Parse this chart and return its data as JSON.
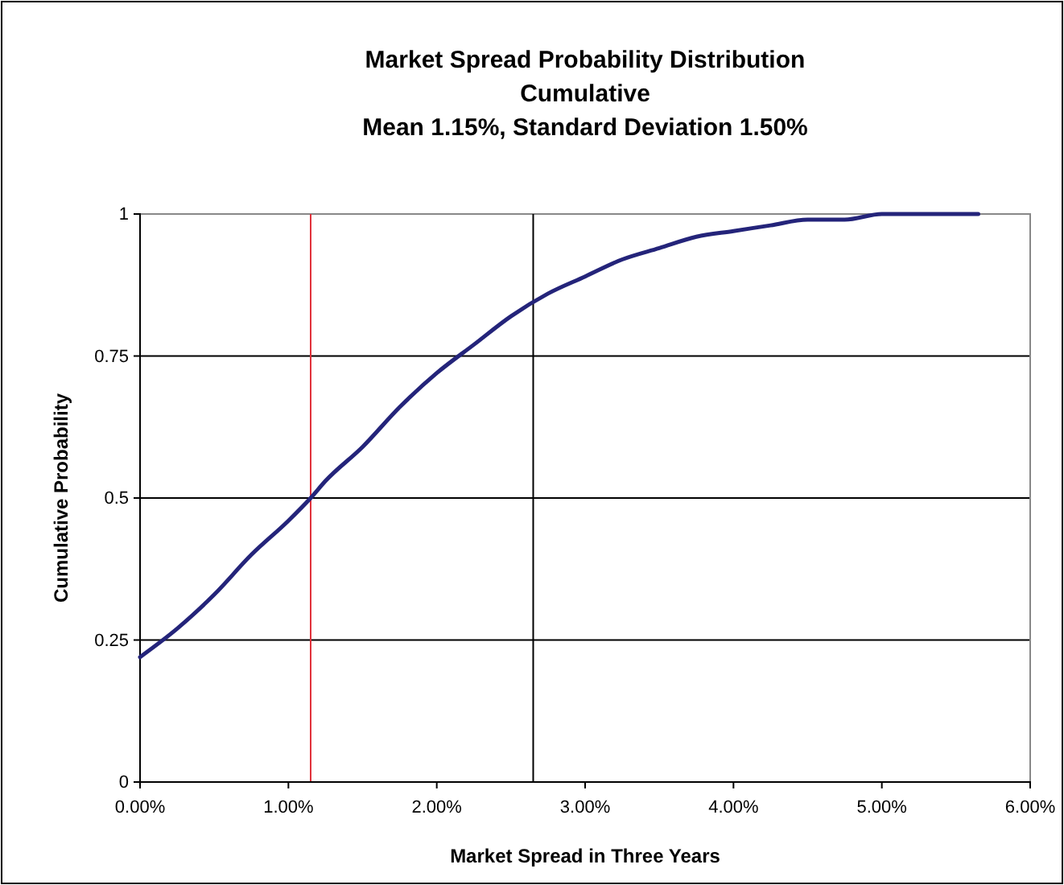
{
  "chart_data": {
    "type": "line",
    "title": "Market Spread Probability Distribution",
    "subtitle": "Cumulative\nMean 1.15%, Standard Deviation 1.50%",
    "xlabel": "Market Spread in Three Years",
    "ylabel": "Cumulative Probability",
    "x": [
      0,
      0.25,
      0.5,
      0.75,
      1,
      1.15,
      1.25,
      1.5,
      1.75,
      2,
      2.25,
      2.5,
      2.75,
      3,
      3.25,
      3.5,
      3.75,
      4,
      4.25,
      4.5,
      4.75,
      5,
      5.25,
      5.5,
      5.65
    ],
    "series": [
      {
        "color": "#24247a",
        "values": [
          0.22,
          0.27,
          0.33,
          0.4,
          0.46,
          0.5,
          0.53,
          0.59,
          0.66,
          0.72,
          0.77,
          0.82,
          0.86,
          0.89,
          0.92,
          0.94,
          0.96,
          0.97,
          0.98,
          0.99,
          0.99,
          1,
          1,
          1,
          1
        ]
      }
    ],
    "xlim": [
      0,
      6
    ],
    "xticks": [
      {
        "value": 0,
        "label": "0.00%"
      },
      {
        "value": 1,
        "label": "1.00%"
      },
      {
        "value": 2,
        "label": "2.00%"
      },
      {
        "value": 3,
        "label": "3.00%"
      },
      {
        "value": 4,
        "label": "4.00%"
      },
      {
        "value": 5,
        "label": "5.00%"
      },
      {
        "value": 6,
        "label": "6.00%"
      }
    ],
    "ylim": [
      0,
      1
    ],
    "yticks": [
      0,
      0.25,
      0.5,
      0.75,
      1
    ],
    "ref_lines": [
      {
        "axis": "x",
        "value": 1.15,
        "color": "#e0303a"
      },
      {
        "axis": "x",
        "value": 2.65,
        "color": "#000000"
      }
    ],
    "grid": "y",
    "marker": "none",
    "line_style": "solid"
  }
}
